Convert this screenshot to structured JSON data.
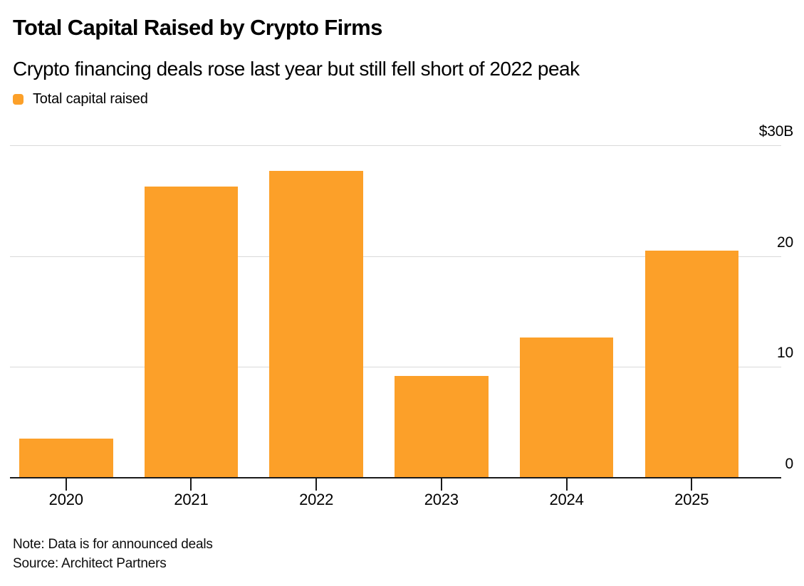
{
  "header": {
    "title": "Total Capital Raised by Crypto Firms",
    "subtitle": "Crypto financing deals rose last year but still fell short of 2022 peak"
  },
  "legend": {
    "label": "Total capital raised",
    "swatch_color": "#FCA029"
  },
  "chart_data": {
    "type": "bar",
    "title": "Total Capital Raised by Crypto Firms",
    "subtitle": "Crypto financing deals rose last year but still fell short of 2022 peak",
    "series_name": "Total capital raised",
    "categories": [
      "2020",
      "2021",
      "2022",
      "2023",
      "2024",
      "2025"
    ],
    "values": [
      3.5,
      26.2,
      27.6,
      9.1,
      12.6,
      20.4
    ],
    "unit": "billions USD",
    "ylim": [
      0,
      30
    ],
    "yticks": [
      {
        "value": 0,
        "label": "0"
      },
      {
        "value": 10,
        "label": "10"
      },
      {
        "value": 20,
        "label": "20"
      },
      {
        "value": 30,
        "label": "$30B"
      }
    ],
    "grid": "horizontal",
    "legend_position": "top-left",
    "y_axis_side": "right",
    "bar_color": "#FCA029",
    "gridline_color": "#D9D9D9",
    "baseline_color": "#1A1A1A"
  },
  "footer": {
    "note": "Note: Data is for announced deals",
    "source": "Source: Architect Partners"
  }
}
